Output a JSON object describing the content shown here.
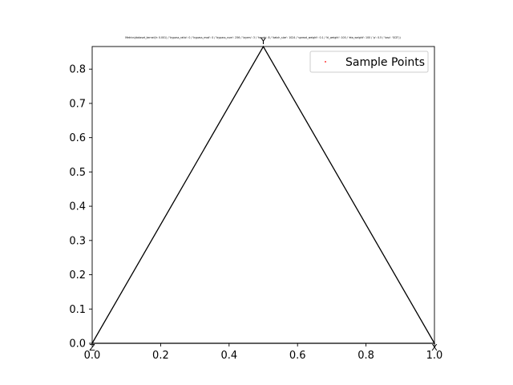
{
  "chart_data": {
    "type": "scatter",
    "title": "Metrics(dataset_kernel(lr: 0.001) / 'bypass_ratio': 0 / 'bypass_mod': 0 / 'bypass_num': 256 / 'layers': 3 / 'heads': 8 / 'batch_size': 1024 / 'spread_weight': 0.1 / 'kl_weight': 100 / 'eta_weight': 100 / 'p': 0.5 / 'loss': 'SCE'))",
    "xlabel": "",
    "ylabel": "",
    "xlim": [
      0.0,
      1.0
    ],
    "ylim": [
      0.0,
      0.866
    ],
    "x_ticks": [
      "0.0",
      "0.2",
      "0.4",
      "0.6",
      "0.8",
      "1.0"
    ],
    "x_tick_values": [
      0.0,
      0.2,
      0.4,
      0.6,
      0.8,
      1.0
    ],
    "y_ticks": [
      "0.0",
      "0.1",
      "0.2",
      "0.3",
      "0.4",
      "0.5",
      "0.6",
      "0.7",
      "0.8"
    ],
    "y_tick_values": [
      0.0,
      0.1,
      0.2,
      0.3,
      0.4,
      0.5,
      0.6,
      0.7,
      0.8
    ],
    "simplex": {
      "vertices": [
        [
          0.0,
          0.0
        ],
        [
          1.0,
          0.0
        ],
        [
          0.5,
          0.866
        ]
      ],
      "vertex_labels": [
        "Z",
        "X",
        "Y"
      ],
      "color": "#000000"
    },
    "series": [
      {
        "name": "Sample Points",
        "color": "#ff0000",
        "points": []
      }
    ],
    "legend": {
      "position": "top-right",
      "entries": [
        "Sample Points"
      ]
    },
    "grid": false
  }
}
